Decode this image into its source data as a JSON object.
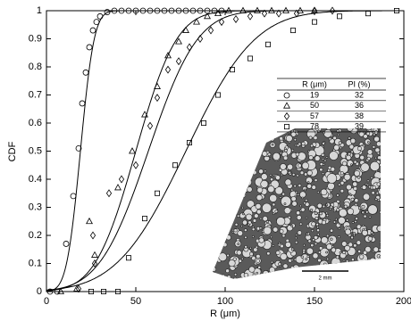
{
  "chart_data": {
    "type": "scatter",
    "xlabel": "R (μm)",
    "ylabel": "CDF",
    "xlim": [
      0,
      200
    ],
    "ylim": [
      0,
      1
    ],
    "xticks": [
      0,
      50,
      100,
      150,
      200
    ],
    "yticks": [
      0,
      0.1,
      0.2,
      0.3,
      0.4,
      0.5,
      0.6,
      0.7,
      0.8,
      0.9,
      1
    ],
    "table_headers": [
      "R (μm)",
      "PI (%)"
    ],
    "series": [
      {
        "marker": "circle",
        "color": "#000000",
        "R": 19,
        "PI": 32,
        "x": [
          2,
          6,
          11,
          15,
          18,
          20,
          22,
          24,
          26,
          28,
          30,
          34,
          38,
          42,
          46,
          50,
          54,
          58,
          62,
          66,
          70,
          74,
          78,
          82,
          86,
          90,
          94,
          98
        ],
        "values": [
          0,
          0,
          0.17,
          0.34,
          0.51,
          0.67,
          0.78,
          0.87,
          0.93,
          0.96,
          0.98,
          0.995,
          1,
          1,
          1,
          1,
          1,
          1,
          1,
          1,
          1,
          1,
          1,
          1,
          1,
          1,
          1,
          1
        ]
      },
      {
        "marker": "triangle",
        "color": "#000000",
        "R": 50,
        "PI": 36,
        "x": [
          8,
          17,
          24,
          27,
          40,
          48,
          55,
          62,
          68,
          74,
          78,
          84,
          90,
          96,
          102,
          110,
          118,
          126,
          134,
          142,
          150
        ],
        "values": [
          0,
          0.01,
          0.25,
          0.13,
          0.37,
          0.5,
          0.63,
          0.73,
          0.84,
          0.89,
          0.93,
          0.96,
          0.98,
          0.99,
          1,
          1,
          1,
          1,
          1,
          1,
          1
        ]
      },
      {
        "marker": "diamond",
        "color": "#000000",
        "R": 57,
        "PI": 38,
        "x": [
          18,
          26,
          27,
          35,
          42,
          50,
          58,
          62,
          68,
          74,
          80,
          86,
          92,
          98,
          106,
          114,
          122,
          130,
          140,
          150,
          160
        ],
        "values": [
          0.01,
          0.2,
          0.1,
          0.35,
          0.4,
          0.45,
          0.59,
          0.69,
          0.79,
          0.82,
          0.87,
          0.9,
          0.93,
          0.96,
          0.97,
          0.98,
          0.99,
          0.99,
          0.99,
          1,
          1
        ]
      },
      {
        "marker": "square",
        "color": "#000000",
        "R": 78,
        "PI": 39,
        "x": [
          25,
          32,
          40,
          46,
          55,
          62,
          72,
          80,
          88,
          96,
          104,
          114,
          124,
          138,
          150,
          164,
          180,
          196
        ],
        "values": [
          0,
          0,
          0,
          0.12,
          0.26,
          0.35,
          0.45,
          0.53,
          0.6,
          0.7,
          0.79,
          0.83,
          0.88,
          0.93,
          0.96,
          0.98,
          0.99,
          1
        ]
      }
    ],
    "inset_scale_bar": "2 mm"
  }
}
